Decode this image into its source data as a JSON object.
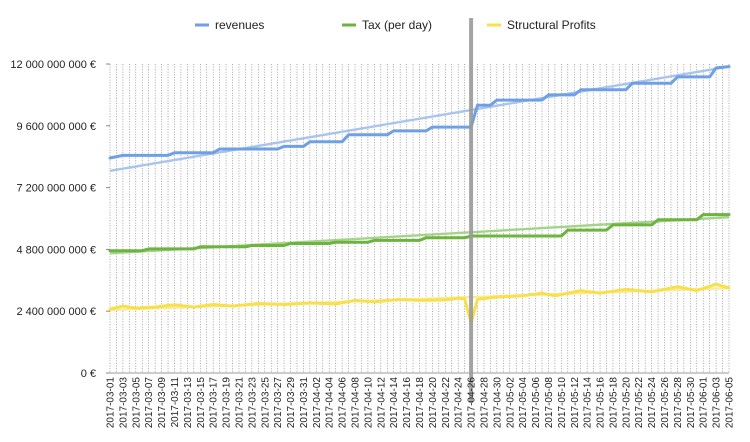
{
  "chart_data": {
    "type": "line",
    "legend_position": "top",
    "grid": "vertical-dotted",
    "ylim": [
      0,
      12000000000
    ],
    "yticks": [
      0,
      2400000000,
      4800000000,
      7200000000,
      9600000000,
      12000000000
    ],
    "ytick_labels": [
      "0 €",
      "2 400 000 000 €",
      "4 800 000 000 €",
      "7 200 000 000 €",
      "9 600 000 000 €",
      "12 000 000 000 €"
    ],
    "x_start": "2017-03-01",
    "x_end": "2017-06-05",
    "x_tick_labels": [
      "2017-03-01",
      "2017-03-03",
      "2017-03-05",
      "2017-03-07",
      "2017-03-09",
      "2017-03-11",
      "2017-03-13",
      "2017-03-15",
      "2017-03-17",
      "2017-03-19",
      "2017-03-21",
      "2017-03-23",
      "2017-03-25",
      "2017-03-27",
      "2017-03-29",
      "2017-03-31",
      "2017-04-02",
      "2017-04-04",
      "2017-04-06",
      "2017-04-08",
      "2017-04-10",
      "2017-04-12",
      "2017-04-14",
      "2017-04-16",
      "2017-04-18",
      "2017-04-20",
      "2017-04-22",
      "2017-04-24",
      "2017-04-26",
      "2017-04-28",
      "2017-04-30",
      "2017-05-02",
      "2017-05-04",
      "2017-05-06",
      "2017-05-08",
      "2017-05-10",
      "2017-05-12",
      "2017-05-14",
      "2017-05-16",
      "2017-05-18",
      "2017-05-20",
      "2017-05-22",
      "2017-05-24",
      "2017-05-26",
      "2017-05-28",
      "2017-05-30",
      "2017-06-01",
      "2017-06-03",
      "2017-06-05"
    ],
    "marker_date": "2017-04-26",
    "series": [
      {
        "name": "revenues",
        "color": "#6fa0e6",
        "trend_color": "#a9c4ee",
        "trend": [
          [
            "2017-03-01",
            7850000000
          ],
          [
            "2017-06-05",
            11900000000
          ]
        ],
        "points": [
          [
            "2017-03-01",
            8350000000
          ],
          [
            "2017-03-03",
            8450000000
          ],
          [
            "2017-03-10",
            8450000000
          ],
          [
            "2017-03-11",
            8550000000
          ],
          [
            "2017-03-17",
            8550000000
          ],
          [
            "2017-03-18",
            8700000000
          ],
          [
            "2017-03-27",
            8700000000
          ],
          [
            "2017-03-28",
            8800000000
          ],
          [
            "2017-03-31",
            8800000000
          ],
          [
            "2017-04-01",
            8980000000
          ],
          [
            "2017-04-06",
            8980000000
          ],
          [
            "2017-04-07",
            9250000000
          ],
          [
            "2017-04-13",
            9250000000
          ],
          [
            "2017-04-14",
            9400000000
          ],
          [
            "2017-04-19",
            9400000000
          ],
          [
            "2017-04-20",
            9550000000
          ],
          [
            "2017-04-26",
            9550000000
          ],
          [
            "2017-04-27",
            10400000000
          ],
          [
            "2017-04-29",
            10400000000
          ],
          [
            "2017-04-30",
            10600000000
          ],
          [
            "2017-05-07",
            10600000000
          ],
          [
            "2017-05-08",
            10800000000
          ],
          [
            "2017-05-12",
            10800000000
          ],
          [
            "2017-05-13",
            11000000000
          ],
          [
            "2017-05-20",
            11000000000
          ],
          [
            "2017-05-21",
            11250000000
          ],
          [
            "2017-05-27",
            11250000000
          ],
          [
            "2017-05-28",
            11500000000
          ],
          [
            "2017-06-02",
            11500000000
          ],
          [
            "2017-06-03",
            11850000000
          ],
          [
            "2017-06-05",
            11900000000
          ]
        ]
      },
      {
        "name": "Tax (per day)",
        "color": "#6db33f",
        "trend_color": "#a6d38a",
        "trend": [
          [
            "2017-03-01",
            4650000000
          ],
          [
            "2017-06-05",
            6050000000
          ]
        ],
        "points": [
          [
            "2017-03-01",
            4750000000
          ],
          [
            "2017-03-06",
            4750000000
          ],
          [
            "2017-03-07",
            4820000000
          ],
          [
            "2017-03-14",
            4820000000
          ],
          [
            "2017-03-15",
            4900000000
          ],
          [
            "2017-03-22",
            4900000000
          ],
          [
            "2017-03-23",
            4950000000
          ],
          [
            "2017-03-28",
            4950000000
          ],
          [
            "2017-03-29",
            5030000000
          ],
          [
            "2017-04-04",
            5030000000
          ],
          [
            "2017-04-05",
            5080000000
          ],
          [
            "2017-04-10",
            5080000000
          ],
          [
            "2017-04-11",
            5150000000
          ],
          [
            "2017-04-18",
            5150000000
          ],
          [
            "2017-04-19",
            5250000000
          ],
          [
            "2017-04-25",
            5250000000
          ],
          [
            "2017-04-26",
            5320000000
          ],
          [
            "2017-05-10",
            5320000000
          ],
          [
            "2017-05-11",
            5550000000
          ],
          [
            "2017-05-17",
            5550000000
          ],
          [
            "2017-05-18",
            5750000000
          ],
          [
            "2017-05-24",
            5750000000
          ],
          [
            "2017-05-25",
            5950000000
          ],
          [
            "2017-05-31",
            5950000000
          ],
          [
            "2017-06-01",
            6150000000
          ],
          [
            "2017-06-05",
            6150000000
          ]
        ]
      },
      {
        "name": "Structural Profits",
        "color": "#f7e04a",
        "trend_color": "#f8eb9a",
        "trend": [
          [
            "2017-03-01",
            2450000000
          ],
          [
            "2017-06-05",
            3300000000
          ]
        ],
        "points": [
          [
            "2017-03-01",
            2480000000
          ],
          [
            "2017-03-03",
            2600000000
          ],
          [
            "2017-03-05",
            2520000000
          ],
          [
            "2017-03-08",
            2560000000
          ],
          [
            "2017-03-11",
            2650000000
          ],
          [
            "2017-03-14",
            2560000000
          ],
          [
            "2017-03-17",
            2660000000
          ],
          [
            "2017-03-20",
            2600000000
          ],
          [
            "2017-03-24",
            2700000000
          ],
          [
            "2017-03-28",
            2660000000
          ],
          [
            "2017-04-01",
            2720000000
          ],
          [
            "2017-04-05",
            2680000000
          ],
          [
            "2017-04-08",
            2820000000
          ],
          [
            "2017-04-11",
            2760000000
          ],
          [
            "2017-04-15",
            2860000000
          ],
          [
            "2017-04-18",
            2820000000
          ],
          [
            "2017-04-22",
            2840000000
          ],
          [
            "2017-04-24",
            2900000000
          ],
          [
            "2017-04-25",
            2880000000
          ],
          [
            "2017-04-26",
            1950000000
          ],
          [
            "2017-04-27",
            2860000000
          ],
          [
            "2017-04-30",
            2950000000
          ],
          [
            "2017-05-04",
            3000000000
          ],
          [
            "2017-05-07",
            3100000000
          ],
          [
            "2017-05-09",
            3000000000
          ],
          [
            "2017-05-13",
            3200000000
          ],
          [
            "2017-05-16",
            3100000000
          ],
          [
            "2017-05-20",
            3250000000
          ],
          [
            "2017-05-24",
            3150000000
          ],
          [
            "2017-05-28",
            3350000000
          ],
          [
            "2017-05-31",
            3200000000
          ],
          [
            "2017-06-03",
            3450000000
          ],
          [
            "2017-06-05",
            3300000000
          ]
        ]
      }
    ]
  }
}
